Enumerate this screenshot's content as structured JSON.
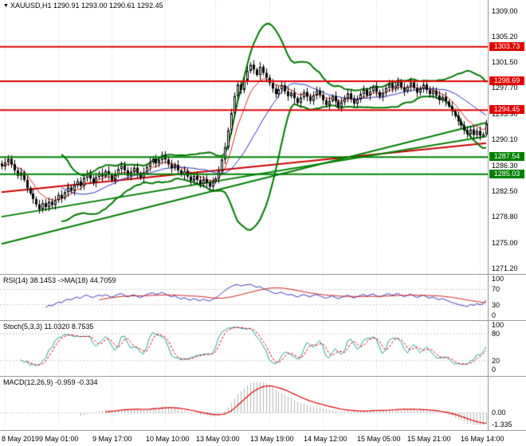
{
  "window": {
    "title": "XAUUSD,H1  1290.91 1293.00 1290.61 1292.45"
  },
  "chart_data": {
    "type": "candlestick",
    "title": "XAUUSD,H1",
    "symbol": "XAUUSD",
    "timeframe": "H1",
    "current": {
      "open": 1290.91,
      "high": 1293.0,
      "low": 1290.61,
      "close": 1292.45
    },
    "ylim": [
      1271.2,
      1309.0
    ],
    "y_ticks": [
      "1309.00",
      "1305.20",
      "1301.50",
      "1297.70",
      "1293.90",
      "1290.10",
      "1286.30",
      "1282.50",
      "1278.80",
      "1275.00",
      "1271.20"
    ],
    "x_labels": [
      "8 May 2019",
      "9 May 01:00",
      "9 May 17:00",
      "10 May 10:00",
      "13 May 03:00",
      "13 May 19:00",
      "14 May 12:00",
      "15 May 05:00",
      "15 May 21:00",
      "16 May 14:00"
    ],
    "label_indices": [
      1,
      18,
      35,
      52,
      68,
      85,
      102,
      119,
      135,
      152
    ],
    "closes": [
      1286.2,
      1286.8,
      1287.3,
      1286.5,
      1285.6,
      1284.8,
      1285.3,
      1284.2,
      1283.0,
      1282.2,
      1281.4,
      1280.6,
      1279.9,
      1280.8,
      1280.2,
      1281.0,
      1280.5,
      1281.2,
      1282.0,
      1281.5,
      1282.4,
      1283.1,
      1282.6,
      1283.4,
      1284.0,
      1283.3,
      1284.5,
      1285.1,
      1284.4,
      1283.8,
      1284.6,
      1285.2,
      1284.7,
      1285.5,
      1284.9,
      1284.2,
      1285.0,
      1285.8,
      1286.3,
      1285.6,
      1284.8,
      1285.4,
      1286.0,
      1285.2,
      1284.5,
      1285.3,
      1286.1,
      1286.8,
      1287.3,
      1286.6,
      1287.1,
      1287.8,
      1287.2,
      1286.5,
      1285.9,
      1286.4,
      1285.6,
      1284.9,
      1285.5,
      1284.7,
      1284.1,
      1284.8,
      1284.2,
      1283.6,
      1284.3,
      1283.8,
      1283.2,
      1283.9,
      1284.4,
      1285.5,
      1287.2,
      1289.0,
      1291.5,
      1294.0,
      1296.5,
      1298.2,
      1297.4,
      1298.8,
      1300.2,
      1301.1,
      1300.4,
      1299.6,
      1300.8,
      1299.9,
      1299.2,
      1298.4,
      1297.6,
      1296.8,
      1297.5,
      1298.1,
      1297.2,
      1296.5,
      1297.0,
      1296.2,
      1295.5,
      1296.3,
      1297.1,
      1296.4,
      1295.8,
      1296.6,
      1297.3,
      1296.7,
      1295.9,
      1295.2,
      1295.8,
      1296.5,
      1295.7,
      1294.9,
      1295.6,
      1296.2,
      1296.9,
      1296.1,
      1295.4,
      1296.0,
      1296.8,
      1297.4,
      1296.6,
      1297.2,
      1297.9,
      1297.1,
      1296.4,
      1297.0,
      1297.7,
      1298.3,
      1297.6,
      1298.0,
      1298.6,
      1297.8,
      1297.2,
      1297.9,
      1298.5,
      1297.7,
      1297.0,
      1297.6,
      1298.2,
      1297.4,
      1296.8,
      1297.3,
      1296.6,
      1295.9,
      1296.4,
      1295.7,
      1295.0,
      1294.3,
      1293.6,
      1292.8,
      1292.2,
      1291.5,
      1290.9,
      1291.6,
      1290.8,
      1291.4,
      1290.7,
      1290.91,
      1292.45
    ],
    "levels": [
      {
        "price": 1303.73,
        "label": "1303.73",
        "color": "#e00000"
      },
      {
        "price": 1298.69,
        "label": "1298.69",
        "color": "#e00000"
      },
      {
        "price": 1294.45,
        "label": "1294.45",
        "color": "#e00000"
      },
      {
        "price": 1287.54,
        "label": "1287.54",
        "color": "#008000"
      },
      {
        "price": 1285.03,
        "label": "1285.03",
        "color": "#008000"
      }
    ],
    "trendlines": [
      {
        "i1": 0,
        "p1": 1282.4,
        "i2": 154,
        "p2": 1289.6,
        "color": "#cc0000",
        "width": 2
      },
      {
        "i1": 0,
        "p1": 1278.8,
        "i2": 154,
        "p2": 1290.6,
        "color": "#008000",
        "width": 2
      },
      {
        "i1": 0,
        "p1": 1274.8,
        "i2": 154,
        "p2": 1292.6,
        "color": "#008000",
        "width": 2
      }
    ],
    "overlays": {
      "bollinger": {
        "period": 20,
        "deviation": 2,
        "color": "#007800"
      },
      "ma_fast": {
        "period": 8,
        "color": "#dd2222"
      },
      "ma_mid": {
        "period": 20,
        "color": "#2a2ac0"
      }
    },
    "indicators": [
      {
        "name": "rsi",
        "label": "RSI(14) 38.1453  ->MA(18) 44.7059",
        "period": 14,
        "ma_period": 18,
        "axis_labels": [
          "100",
          "70",
          "30",
          "0"
        ],
        "dashed_levels": [
          70,
          30
        ],
        "colors": {
          "main": "#3838b8",
          "ma": "#cc2020"
        }
      },
      {
        "name": "stoch",
        "label": "Stoch(5,3,3) 11.0320 8.7535",
        "k": 5,
        "slowing": 3,
        "d": 3,
        "axis_labels": [
          "100",
          "80",
          "20",
          "0"
        ],
        "dashed_levels": [
          80,
          20
        ],
        "colors": {
          "k": "#20a0a0",
          "d": "#e00000"
        }
      },
      {
        "name": "macd",
        "label": "MACD(12,26,9) -0.959 -0.334",
        "fast": 12,
        "slow": 26,
        "signal": 9,
        "axis_labels": [
          "0.00",
          "-1.335"
        ],
        "colors": {
          "hist": "#b4b4b4",
          "signal": "#e00000"
        }
      }
    ]
  }
}
